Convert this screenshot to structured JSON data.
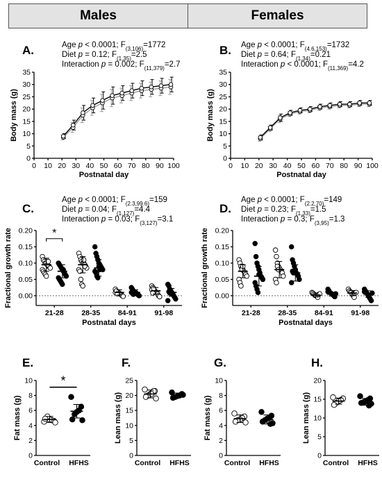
{
  "header": {
    "males": "Males",
    "females": "Females"
  },
  "panels": [
    {
      "id": "A",
      "letter": "A.",
      "stats": [
        {
          "pre": "Age ",
          "p": "p",
          "mid": " < 0.0001; F",
          "sub": "(3,106)",
          "post": "=1772"
        },
        {
          "pre": "Diet ",
          "p": "p",
          "mid": " = 0.12; F",
          "sub": "(1,35)",
          "post": "=2.5"
        },
        {
          "pre": "Interaction ",
          "p": "p",
          "mid": " = 0.002; F",
          "sub": "(11,379)",
          "post": "=2.7"
        }
      ]
    },
    {
      "id": "B",
      "letter": "B.",
      "stats": [
        {
          "pre": "Age ",
          "p": "p",
          "mid": " < 0.0001; F",
          "sub": "(4.6,153)",
          "post": "=1732"
        },
        {
          "pre": "Diet ",
          "p": "p",
          "mid": " = 0.64; F",
          "sub": "(1,34)",
          "post": "=0.21"
        },
        {
          "pre": "Interaction ",
          "p": "p",
          "mid": " < 0.0001; F",
          "sub": "(11,369)",
          "post": "=4.2"
        }
      ]
    },
    {
      "id": "C",
      "letter": "C.",
      "stats": [
        {
          "pre": "Age ",
          "p": "p",
          "mid": " < 0.0001; F",
          "sub": "(2.3,99.6)",
          "post": "=159"
        },
        {
          "pre": "Diet ",
          "p": "p",
          "mid": " = 0.04; F",
          "sub": "(1,127)",
          "post": "=4.4"
        },
        {
          "pre": "Interaction ",
          "p": "p",
          "mid": " = 0.03; F",
          "sub": "(3,127)",
          "post": "=3.1"
        }
      ]
    },
    {
      "id": "D",
      "letter": "D.",
      "stats": [
        {
          "pre": "Age ",
          "p": "p",
          "mid": " < 0.0001; F",
          "sub": "(2.2,70)",
          "post": "=149"
        },
        {
          "pre": "Diet ",
          "p": "p",
          "mid": " = 0.23; F",
          "sub": "(1,33)",
          "post": "=1.5"
        },
        {
          "pre": "Interaction ",
          "p": "p",
          "mid": " = 0.3; F",
          "sub": "(3,95)",
          "post": "=1.3"
        }
      ]
    },
    {
      "id": "E",
      "letter": "E."
    },
    {
      "id": "F",
      "letter": "F."
    },
    {
      "id": "G",
      "letter": "G."
    },
    {
      "id": "H",
      "letter": "H."
    }
  ],
  "colors": {
    "control_fill": "#ffffff",
    "hfhs_fill": "#000000",
    "stroke": "#000000",
    "line_control": "#9a9a9a",
    "line_hfhs": "#000000"
  },
  "chart_data": [
    {
      "id": "A",
      "type": "line",
      "title": "",
      "xlabel": "Postnatal day",
      "ylabel": "Body mass (g)",
      "xlim": [
        0,
        100
      ],
      "ylim": [
        0,
        35
      ],
      "xticks": [
        0,
        10,
        20,
        30,
        40,
        50,
        60,
        70,
        80,
        90,
        100
      ],
      "yticks": [
        0,
        5,
        10,
        15,
        20,
        25,
        30,
        35
      ],
      "x": [
        21,
        28,
        35,
        42,
        49,
        56,
        63,
        70,
        77,
        84,
        91,
        98
      ],
      "series": [
        {
          "values": [
            8.5,
            12.5,
            17.5,
            20.5,
            22.5,
            24.5,
            25.5,
            26.5,
            27.5,
            28,
            28.5,
            29
          ],
          "sd": [
            1,
            2,
            3,
            3,
            3.5,
            3.5,
            3,
            3,
            3,
            3,
            3,
            3
          ],
          "style": "control"
        },
        {
          "values": [
            9,
            13.5,
            18.5,
            21.5,
            23.5,
            25.5,
            26.5,
            27.5,
            28.5,
            29,
            29.5,
            30
          ],
          "sd": [
            1,
            2,
            3,
            3,
            3.5,
            3.5,
            3,
            3,
            3,
            3,
            3,
            3
          ],
          "style": "hfhs"
        }
      ]
    },
    {
      "id": "B",
      "type": "line",
      "title": "",
      "xlabel": "Postnatal day",
      "ylabel": "Body mass (g)",
      "xlim": [
        0,
        100
      ],
      "ylim": [
        0,
        35
      ],
      "xticks": [
        0,
        10,
        20,
        30,
        40,
        50,
        60,
        70,
        80,
        90,
        100
      ],
      "yticks": [
        0,
        5,
        10,
        15,
        20,
        25,
        30,
        35
      ],
      "x": [
        21,
        28,
        35,
        42,
        49,
        56,
        63,
        70,
        77,
        84,
        91,
        98
      ],
      "series": [
        {
          "values": [
            8,
            12,
            16,
            18,
            19,
            19.5,
            20.5,
            21,
            21.5,
            21.5,
            22,
            22
          ],
          "sd": [
            1,
            1,
            1.5,
            1,
            1,
            1,
            1,
            1,
            1,
            1,
            1,
            1
          ],
          "style": "control"
        },
        {
          "values": [
            8.5,
            12.5,
            16.5,
            18.5,
            19.5,
            20,
            21,
            21.5,
            22,
            22,
            22.5,
            22.5
          ],
          "sd": [
            1,
            1,
            1.5,
            1,
            1,
            1,
            1,
            1,
            1,
            1,
            1,
            1
          ],
          "style": "hfhs"
        }
      ]
    },
    {
      "id": "C",
      "type": "scatter",
      "title": "",
      "xlabel": "Postnatal days",
      "ylabel": "Fractional growth rate",
      "ylim": [
        -0.03,
        0.2
      ],
      "yticks": [
        0,
        0.05,
        0.1,
        0.15,
        0.2
      ],
      "ytick_labels": [
        "0.00",
        "0.05",
        "0.10",
        "0.15",
        "0.20"
      ],
      "categories": [
        "21-28",
        "28-35",
        "84-91",
        "91-98"
      ],
      "series": [
        {
          "style": "control",
          "mean": [
            0.095,
            0.095,
            0.01,
            0.015
          ],
          "sd": [
            0.02,
            0.025,
            0.008,
            0.01
          ],
          "points": [
            [
              0.12,
              0.11,
              0.105,
              0.1,
              0.1,
              0.095,
              0.09,
              0.09,
              0.085,
              0.08,
              0.075,
              0.07,
              0.065,
              0.06,
              0.095,
              0.105
            ],
            [
              0.13,
              0.12,
              0.11,
              0.105,
              0.1,
              0.1,
              0.095,
              0.09,
              0.085,
              0.08,
              0.075,
              0.05,
              0.035,
              0.03,
              0.11,
              0.09
            ],
            [
              0.02,
              0.015,
              0.012,
              0.01,
              0.008,
              0.005,
              0.003,
              0,
              -0.002,
              0.01,
              0.015,
              0.006
            ],
            [
              0.03,
              0.025,
              0.02,
              0.015,
              0.012,
              0.01,
              0.005,
              0,
              -0.003,
              0.018,
              0.008,
              0.022
            ]
          ]
        },
        {
          "style": "hfhs",
          "mean": [
            0.075,
            0.085,
            0.01,
            0.01
          ],
          "sd": [
            0.02,
            0.025,
            0.008,
            0.012
          ],
          "points": [
            [
              0.1,
              0.095,
              0.09,
              0.085,
              0.08,
              0.075,
              0.07,
              0.065,
              0.06,
              0.055,
              0.05,
              0.045,
              0.04,
              0.035,
              0.08,
              0.07
            ],
            [
              0.15,
              0.13,
              0.12,
              0.11,
              0.1,
              0.095,
              0.09,
              0.085,
              0.08,
              0.075,
              0.07,
              0.06,
              0.055,
              0.09,
              0.08
            ],
            [
              0.025,
              0.02,
              0.015,
              0.012,
              0.01,
              0.008,
              0.005,
              0.002,
              0,
              0.01,
              0.018,
              0.004
            ],
            [
              0.035,
              0.03,
              0.02,
              0.015,
              0.01,
              0.005,
              0,
              -0.005,
              -0.01,
              -0.015,
              0.012,
              0.008
            ]
          ]
        }
      ],
      "annotations": [
        {
          "text": "*",
          "between": [
            "21-28"
          ]
        }
      ]
    },
    {
      "id": "D",
      "type": "scatter",
      "title": "",
      "xlabel": "Postnatal days",
      "ylabel": "Fractional growth rate",
      "ylim": [
        -0.03,
        0.2
      ],
      "yticks": [
        0,
        0.05,
        0.1,
        0.15,
        0.2
      ],
      "ytick_labels": [
        "0.00",
        "0.05",
        "0.10",
        "0.15",
        "0.20"
      ],
      "categories": [
        "21-28",
        "28-35",
        "84-91",
        "91-98"
      ],
      "series": [
        {
          "style": "control",
          "mean": [
            0.075,
            0.08,
            0.002,
            0.008
          ],
          "sd": [
            0.02,
            0.025,
            0.006,
            0.008
          ],
          "points": [
            [
              0.11,
              0.1,
              0.09,
              0.085,
              0.08,
              0.075,
              0.07,
              0.065,
              0.06,
              0.05,
              0.04,
              0.03,
              0.08,
              0.09
            ],
            [
              0.14,
              0.12,
              0.1,
              0.09,
              0.085,
              0.08,
              0.075,
              0.07,
              0.06,
              0.05,
              0.04,
              0.09,
              0.08
            ],
            [
              0.01,
              0.008,
              0.005,
              0.002,
              0,
              -0.002,
              -0.005,
              0.004,
              0.006
            ],
            [
              0.02,
              0.015,
              0.012,
              0.01,
              0.005,
              0,
              -0.005,
              0.008,
              0.01
            ]
          ]
        },
        {
          "style": "hfhs",
          "mean": [
            0.06,
            0.07,
            0.005,
            0.005
          ],
          "sd": [
            0.03,
            0.025,
            0.006,
            0.01
          ],
          "points": [
            [
              0.16,
              0.12,
              0.1,
              0.09,
              0.08,
              0.07,
              0.06,
              0.055,
              0.05,
              0.04,
              0.03,
              0.02,
              0.01,
              0.065
            ],
            [
              0.15,
              0.11,
              0.1,
              0.09,
              0.08,
              0.07,
              0.065,
              0.06,
              0.05,
              0.04,
              0.075,
              0.07
            ],
            [
              0.02,
              0.015,
              0.01,
              0.008,
              0.005,
              0.003,
              0,
              -0.003,
              0.006,
              0.012
            ],
            [
              0.02,
              0.015,
              0.01,
              0.005,
              0,
              -0.005,
              -0.01,
              -0.015,
              0.008,
              0.012
            ]
          ]
        }
      ]
    },
    {
      "id": "E",
      "type": "scatter",
      "title": "",
      "xlabel": "",
      "ylabel": "Fat mass (g)",
      "ylim": [
        0,
        10
      ],
      "yticks": [
        0,
        2,
        4,
        6,
        8,
        10
      ],
      "categories": [
        "Control",
        "HFHS"
      ],
      "series": [
        {
          "style": "control",
          "mean": 4.8,
          "sd": 0.4,
          "points": [
            4.5,
            4.6,
            4.7,
            4.8,
            5.2,
            4.9,
            4.4
          ]
        },
        {
          "style": "hfhs",
          "mean": 5.9,
          "sd": 0.9,
          "points": [
            7.8,
            6.5,
            6.0,
            5.8,
            5.5,
            4.8,
            4.7
          ]
        }
      ],
      "annotations": [
        {
          "text": "*"
        }
      ]
    },
    {
      "id": "F",
      "type": "scatter",
      "title": "",
      "xlabel": "",
      "ylabel": "Lean mass (g)",
      "ylim": [
        0,
        25
      ],
      "yticks": [
        0,
        5,
        10,
        15,
        20,
        25
      ],
      "categories": [
        "Control",
        "HFHS"
      ],
      "series": [
        {
          "style": "control",
          "mean": 20.5,
          "sd": 1.3,
          "points": [
            22,
            21.5,
            21,
            20.5,
            20,
            19.5,
            19,
            21.5,
            20.5
          ]
        },
        {
          "style": "hfhs",
          "mean": 20,
          "sd": 0.8,
          "points": [
            21,
            20.5,
            20,
            19.8,
            19.5,
            19.2,
            20.2
          ]
        }
      ]
    },
    {
      "id": "G",
      "type": "scatter",
      "title": "",
      "xlabel": "",
      "ylabel": "Fat mass (g)",
      "ylim": [
        0,
        10
      ],
      "yticks": [
        0,
        2,
        4,
        6,
        8,
        10
      ],
      "categories": [
        "Control",
        "HFHS"
      ],
      "series": [
        {
          "style": "control",
          "mean": 4.9,
          "sd": 0.5,
          "points": [
            5.6,
            5.2,
            5.0,
            4.8,
            4.7,
            4.5,
            4.4
          ]
        },
        {
          "style": "hfhs",
          "mean": 4.8,
          "sd": 0.6,
          "points": [
            5.8,
            5.3,
            5.0,
            4.9,
            4.7,
            4.5,
            4.3,
            4.2
          ]
        }
      ]
    },
    {
      "id": "H",
      "type": "scatter",
      "title": "",
      "xlabel": "",
      "ylabel": "Lean mass (g)",
      "ylim": [
        0,
        20
      ],
      "yticks": [
        0,
        5,
        10,
        15,
        20
      ],
      "categories": [
        "Control",
        "HFHS"
      ],
      "series": [
        {
          "style": "control",
          "mean": 14.5,
          "sd": 0.8,
          "points": [
            15.5,
            15.2,
            14.8,
            14.5,
            14.0,
            13.5
          ]
        },
        {
          "style": "hfhs",
          "mean": 14.3,
          "sd": 0.9,
          "points": [
            15.8,
            15.2,
            14.8,
            14.5,
            14.2,
            14.0,
            13.8,
            13.3
          ]
        }
      ]
    }
  ]
}
